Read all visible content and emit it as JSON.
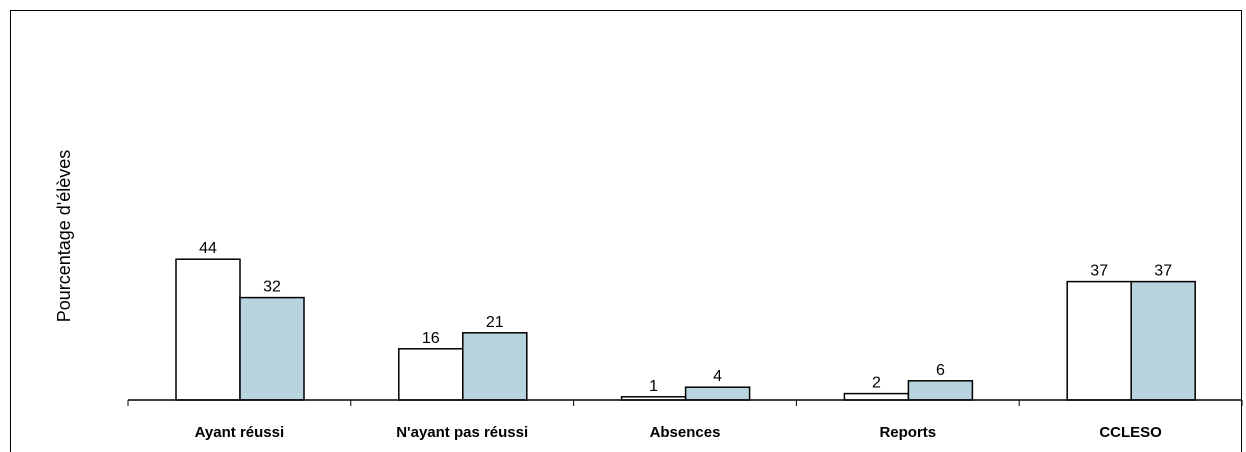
{
  "chart_data": {
    "type": "bar",
    "title": "",
    "xlabel": "",
    "ylabel": "Pourcentage d'élèves",
    "categories": [
      "Ayant réussi",
      "N'ayant pas réussi",
      "Absences",
      "Reports",
      "CCLESO"
    ],
    "series": [
      {
        "values": [
          44,
          16,
          1,
          2,
          37
        ],
        "color": "#ffffff"
      },
      {
        "values": [
          32,
          21,
          4,
          6,
          37
        ],
        "color": "#b8d4de"
      }
    ],
    "ylim": [
      0,
      100
    ],
    "grid": false,
    "legend": "none"
  },
  "colors": {
    "bar_stroke": "#000000",
    "axis": "#000000"
  }
}
